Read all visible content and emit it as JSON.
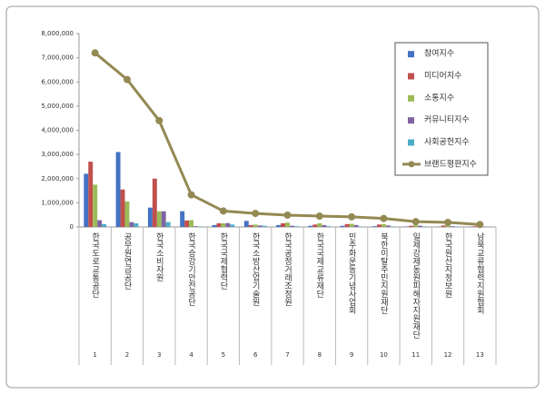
{
  "chart_data": {
    "type": "bar",
    "categories": [
      "한국도로교통공단",
      "공무원연금공단",
      "한국소비자원",
      "한국승강기안전공단",
      "한국국제협력단",
      "한국소방산업기술원",
      "한국공정거래조정원",
      "한국국제교류재단",
      "민주화운동기념사업회",
      "북한이탈주민지원재단",
      "일제강제동원피해자지원재단",
      "한국원산지정보원",
      "남북교류협력지원협회"
    ],
    "ranks": [
      1,
      2,
      3,
      4,
      5,
      6,
      7,
      8,
      9,
      10,
      11,
      12,
      13
    ],
    "series": [
      {
        "name": "참여지수",
        "color": "#4472c4",
        "values": [
          2200000,
          3100000,
          800000,
          650000,
          80000,
          250000,
          80000,
          50000,
          50000,
          30000,
          20000,
          10000,
          10000
        ]
      },
      {
        "name": "미디어지수",
        "color": "#c0504d",
        "values": [
          2700000,
          1550000,
          2000000,
          270000,
          150000,
          80000,
          150000,
          100000,
          120000,
          100000,
          50000,
          60000,
          30000
        ]
      },
      {
        "name": "소통지수",
        "color": "#9bbb59",
        "values": [
          1750000,
          1050000,
          650000,
          280000,
          150000,
          100000,
          180000,
          150000,
          130000,
          120000,
          80000,
          70000,
          40000
        ]
      },
      {
        "name": "커뮤니티지수",
        "color": "#8064a2",
        "values": [
          280000,
          200000,
          650000,
          30000,
          160000,
          60000,
          50000,
          80000,
          80000,
          60000,
          50000,
          30000,
          10000
        ]
      },
      {
        "name": "사회공헌지수",
        "color": "#4bacc6",
        "values": [
          120000,
          150000,
          200000,
          20000,
          100000,
          50000,
          30000,
          30000,
          20000,
          20000,
          20000,
          20000,
          10000
        ]
      },
      {
        "name": "브랜드평판지수",
        "color": "#938953",
        "type": "line",
        "values": [
          7200000,
          6100000,
          4400000,
          1330000,
          660000,
          560000,
          490000,
          450000,
          420000,
          350000,
          220000,
          190000,
          100000
        ]
      }
    ],
    "ylim": [
      0,
      8000000
    ],
    "yticks": [
      0,
      {
        "value": 1000000,
        "label": "1,000,000"
      },
      {
        "value": 2000000,
        "label": "2,000,000"
      },
      {
        "value": 3000000,
        "label": "3,000,000"
      },
      {
        "value": 4000000,
        "label": "4,000,000"
      },
      {
        "value": 5000000,
        "label": "5,000,000"
      },
      {
        "value": 6000000,
        "label": "6,000,000"
      },
      {
        "value": 7000000,
        "label": "7,000,000"
      },
      {
        "value": 8000000,
        "label": "8,000,000"
      }
    ],
    "legend": "upper right"
  }
}
